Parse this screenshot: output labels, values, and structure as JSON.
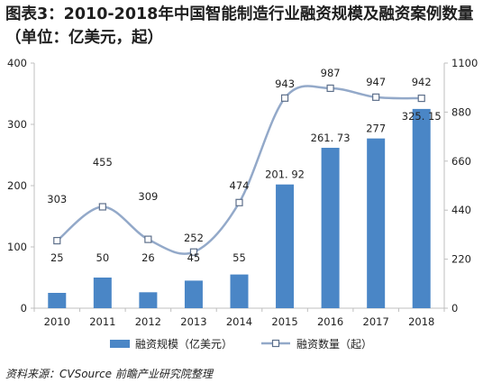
{
  "title": "图表3：2010-2018年中国智能制造行业融资规模及融资案例数量（单位：亿美元，起）",
  "source": "资料来源：CVSource 前瞻产业研究院整理",
  "colors": {
    "bar": "#4a86c6",
    "line": "#93a9c9",
    "marker_fill": "#ffffff",
    "marker_stroke": "#5d6f8a",
    "axis": "#bfbfbf",
    "text": "#222222"
  },
  "chart_data": {
    "type": "bar",
    "categories": [
      "2010",
      "2011",
      "2012",
      "2013",
      "2014",
      "2015",
      "2016",
      "2017",
      "2018"
    ],
    "series": [
      {
        "name": "融资规模（亿美元）",
        "type": "bar",
        "axis": "left",
        "values": [
          25,
          50,
          26,
          45,
          55,
          201.92,
          261.73,
          277,
          325.15
        ],
        "labels": [
          "25",
          "50",
          "26",
          "45",
          "55",
          "201. 92",
          "261. 73",
          "277",
          "325. 15"
        ]
      },
      {
        "name": "融资数量（起）",
        "type": "line",
        "axis": "right",
        "values": [
          303,
          455,
          309,
          252,
          474,
          943,
          987,
          947,
          942
        ],
        "labels": [
          "303",
          "455",
          "309",
          "252",
          "474",
          "943",
          "987",
          "947",
          "942"
        ]
      }
    ],
    "y_left": {
      "range": [
        0,
        400
      ],
      "ticks": [
        "0",
        "100",
        "200",
        "300",
        "400"
      ]
    },
    "y_right": {
      "range": [
        0,
        1100
      ],
      "ticks": [
        "0",
        "220",
        "440",
        "660",
        "880",
        "1100"
      ]
    },
    "legend_position": "bottom",
    "grid": false
  }
}
